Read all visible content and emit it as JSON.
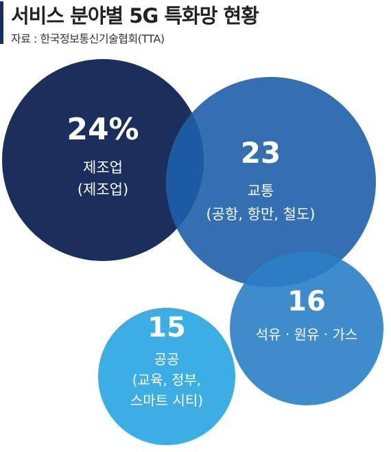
{
  "header": {
    "title": "서비스 분야별 5G 특화망 현황",
    "source": "자료 : 한국정보통신기술협회(TTA)"
  },
  "chart_data": {
    "type": "bubble",
    "title": "서비스 분야별 5G 특화망 현황",
    "value_format": "first value shown with %",
    "categories": [
      {
        "value": 24,
        "value_label": "24%",
        "label_lines": [
          "제조업",
          "(제조업)"
        ],
        "color": "#1b2f5c"
      },
      {
        "value": 23,
        "value_label": "23",
        "label_lines": [
          "교통",
          "(공항, 항만, 철도)"
        ],
        "color": "#1d5fa8"
      },
      {
        "value": 16,
        "value_label": "16",
        "label_lines": [
          "석유 · 원유 · 가스"
        ],
        "color": "#2a7fc6"
      },
      {
        "value": 15,
        "value_label": "15",
        "label_lines": [
          "공공",
          "(교육, 정부,",
          "스마트 시티)"
        ],
        "color": "#28a5e0"
      }
    ]
  }
}
